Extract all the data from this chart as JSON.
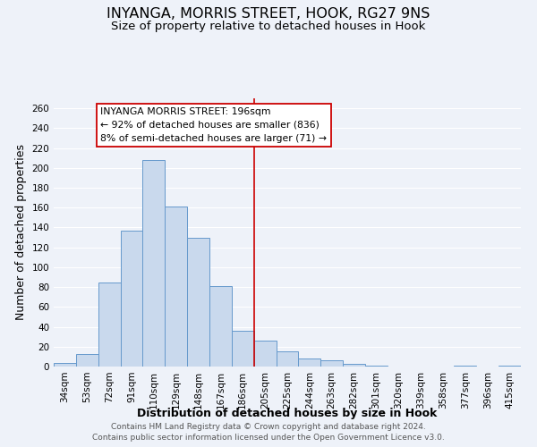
{
  "title": "INYANGA, MORRIS STREET, HOOK, RG27 9NS",
  "subtitle": "Size of property relative to detached houses in Hook",
  "xlabel": "Distribution of detached houses by size in Hook",
  "ylabel": "Number of detached properties",
  "bin_labels": [
    "34sqm",
    "53sqm",
    "72sqm",
    "91sqm",
    "110sqm",
    "129sqm",
    "148sqm",
    "167sqm",
    "186sqm",
    "205sqm",
    "225sqm",
    "244sqm",
    "263sqm",
    "282sqm",
    "301sqm",
    "320sqm",
    "339sqm",
    "358sqm",
    "377sqm",
    "396sqm",
    "415sqm"
  ],
  "bar_heights": [
    4,
    13,
    85,
    137,
    208,
    161,
    130,
    81,
    36,
    26,
    15,
    8,
    6,
    3,
    1,
    0,
    0,
    0,
    1,
    0,
    1
  ],
  "bar_color": "#c9d9ed",
  "bar_edge_color": "#6699cc",
  "vline_color": "#cc0000",
  "annotation_title": "INYANGA MORRIS STREET: 196sqm",
  "annotation_line1": "← 92% of detached houses are smaller (836)",
  "annotation_line2": "8% of semi-detached houses are larger (71) →",
  "annotation_box_color": "#ffffff",
  "annotation_box_edge": "#cc0000",
  "ylim": [
    0,
    270
  ],
  "yticks": [
    0,
    20,
    40,
    60,
    80,
    100,
    120,
    140,
    160,
    180,
    200,
    220,
    240,
    260
  ],
  "footer_line1": "Contains HM Land Registry data © Crown copyright and database right 2024.",
  "footer_line2": "Contains public sector information licensed under the Open Government Licence v3.0.",
  "bg_color": "#eef2f9",
  "grid_color": "#ffffff",
  "title_fontsize": 11.5,
  "subtitle_fontsize": 9.5,
  "axis_label_fontsize": 9,
  "tick_fontsize": 7.5,
  "footer_fontsize": 6.5
}
